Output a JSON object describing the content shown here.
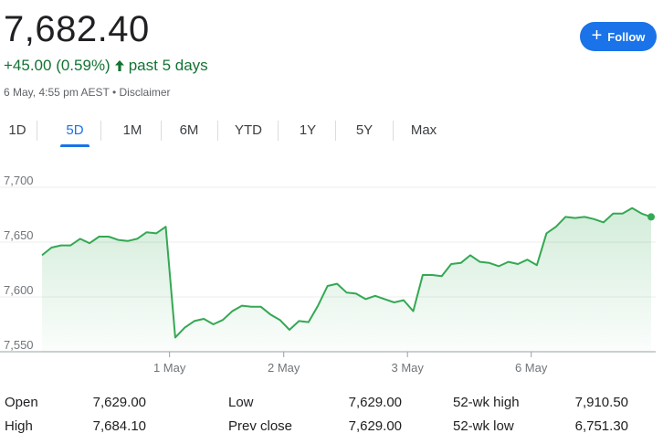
{
  "quote": {
    "price": "7,682.40",
    "change": "+45.00 (0.59%)",
    "period": "past 5 days",
    "timestamp": "6 May, 4:55 pm AEST",
    "separator": "•",
    "disclaimer": "Disclaimer",
    "follow_label": "Follow"
  },
  "colors": {
    "accent": "#1a73e8",
    "positive": "#137333",
    "line": "#34a853"
  },
  "tabs": [
    {
      "label": "1D",
      "active": false
    },
    {
      "label": "5D",
      "active": true
    },
    {
      "label": "1M",
      "active": false
    },
    {
      "label": "6M",
      "active": false
    },
    {
      "label": "YTD",
      "active": false
    },
    {
      "label": "1Y",
      "active": false
    },
    {
      "label": "5Y",
      "active": false
    },
    {
      "label": "Max",
      "active": false
    }
  ],
  "chart_data": {
    "type": "area",
    "ylim": [
      7550,
      7700
    ],
    "yticks": [
      "7,700",
      "7,650",
      "7,600",
      "7,550"
    ],
    "ytick_values": [
      7700,
      7650,
      7600,
      7550
    ],
    "day_labels": [
      "1 May",
      "2 May",
      "3 May",
      "6 May"
    ],
    "grid": true,
    "series": [
      {
        "values": [
          7638,
          7645,
          7647,
          7647,
          7653,
          7649,
          7655,
          7655,
          7652,
          7651,
          7653,
          7659,
          7658,
          7664,
          7563,
          7572,
          7578,
          7580,
          7575,
          7579,
          7587,
          7592,
          7591,
          7591,
          7584,
          7579,
          7570,
          7578,
          7577,
          7592,
          7610,
          7612,
          7604,
          7603,
          7598,
          7601,
          7598,
          7595,
          7597,
          7587,
          7620,
          7620,
          7619,
          7630,
          7631,
          7638,
          7632,
          7631,
          7628,
          7632,
          7630,
          7634,
          7629,
          7658,
          7664,
          7673,
          7672,
          7673,
          7671,
          7668,
          7676,
          7676,
          7681,
          7676,
          7673
        ]
      }
    ],
    "day_start_index": [
      14,
      26,
      39,
      52
    ]
  },
  "stats": [
    {
      "label": "Open",
      "value": "7,629.00"
    },
    {
      "label": "High",
      "value": "7,684.10"
    },
    {
      "label": "Low",
      "value": "7,629.00"
    },
    {
      "label": "Prev close",
      "value": "7,629.00"
    },
    {
      "label": "52-wk high",
      "value": "7,910.50"
    },
    {
      "label": "52-wk low",
      "value": "6,751.30"
    }
  ]
}
